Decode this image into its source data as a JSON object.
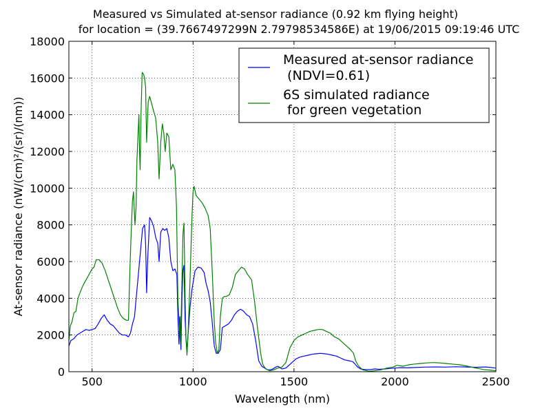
{
  "chart_data": {
    "type": "line",
    "title_line1": "Measured vs Simulated at-sensor radiance (0.92 km flying height)",
    "title_line2": "for location = (39.7667497299N 2.79798534586E) at 19/06/2015 09:19:46 UTC",
    "xlabel": "Wavelength (nm)",
    "ylabel": "At-sensor radiance (nW/(cm)²/(sr)/(nm))",
    "xlim": [
      385,
      2500
    ],
    "ylim": [
      0,
      18000
    ],
    "xticks": [
      500,
      1000,
      1500,
      2000,
      2500
    ],
    "yticks": [
      0,
      2000,
      4000,
      6000,
      8000,
      10000,
      12000,
      14000,
      16000,
      18000
    ],
    "grid": true,
    "legend_position": "top-right",
    "series": [
      {
        "name": "Measured at-sensor radiance",
        "name_line2": " (NDVI=0.61)",
        "color": "#0000ff",
        "points": [
          [
            385,
            1400
          ],
          [
            395,
            1700
          ],
          [
            410,
            1800
          ],
          [
            425,
            2000
          ],
          [
            440,
            2100
          ],
          [
            455,
            2200
          ],
          [
            470,
            2300
          ],
          [
            485,
            2250
          ],
          [
            500,
            2300
          ],
          [
            515,
            2350
          ],
          [
            530,
            2600
          ],
          [
            545,
            2900
          ],
          [
            560,
            3100
          ],
          [
            575,
            2800
          ],
          [
            590,
            2600
          ],
          [
            605,
            2500
          ],
          [
            620,
            2300
          ],
          [
            635,
            2100
          ],
          [
            650,
            2000
          ],
          [
            665,
            2000
          ],
          [
            680,
            1900
          ],
          [
            690,
            2100
          ],
          [
            700,
            2600
          ],
          [
            710,
            3000
          ],
          [
            720,
            4200
          ],
          [
            735,
            6000
          ],
          [
            750,
            7800
          ],
          [
            760,
            8000
          ],
          [
            765,
            7000
          ],
          [
            770,
            4300
          ],
          [
            775,
            6000
          ],
          [
            785,
            8400
          ],
          [
            795,
            8200
          ],
          [
            805,
            7900
          ],
          [
            815,
            7300
          ],
          [
            825,
            7000
          ],
          [
            832,
            6000
          ],
          [
            840,
            7600
          ],
          [
            850,
            7800
          ],
          [
            860,
            7700
          ],
          [
            870,
            7800
          ],
          [
            880,
            7300
          ],
          [
            890,
            6000
          ],
          [
            900,
            5500
          ],
          [
            910,
            5600
          ],
          [
            920,
            5300
          ],
          [
            925,
            3000
          ],
          [
            930,
            1500
          ],
          [
            935,
            3000
          ],
          [
            940,
            1200
          ],
          [
            945,
            4000
          ],
          [
            950,
            5500
          ],
          [
            955,
            5800
          ],
          [
            960,
            3000
          ],
          [
            965,
            1800
          ],
          [
            970,
            1200
          ],
          [
            975,
            2000
          ],
          [
            985,
            3500
          ],
          [
            995,
            4500
          ],
          [
            1010,
            5500
          ],
          [
            1025,
            5700
          ],
          [
            1040,
            5650
          ],
          [
            1055,
            5400
          ],
          [
            1065,
            4800
          ],
          [
            1075,
            4400
          ],
          [
            1085,
            3800
          ],
          [
            1095,
            2700
          ],
          [
            1105,
            1400
          ],
          [
            1115,
            1000
          ],
          [
            1125,
            1000
          ],
          [
            1135,
            1200
          ],
          [
            1145,
            2400
          ],
          [
            1160,
            2500
          ],
          [
            1175,
            2600
          ],
          [
            1190,
            2800
          ],
          [
            1205,
            3100
          ],
          [
            1220,
            3300
          ],
          [
            1235,
            3400
          ],
          [
            1250,
            3300
          ],
          [
            1265,
            3100
          ],
          [
            1280,
            3000
          ],
          [
            1295,
            2600
          ],
          [
            1310,
            1700
          ],
          [
            1325,
            600
          ],
          [
            1340,
            300
          ],
          [
            1355,
            200
          ],
          [
            1370,
            100
          ],
          [
            1390,
            120
          ],
          [
            1410,
            250
          ],
          [
            1420,
            300
          ],
          [
            1440,
            150
          ],
          [
            1460,
            200
          ],
          [
            1470,
            300
          ],
          [
            1490,
            500
          ],
          [
            1510,
            700
          ],
          [
            1530,
            800
          ],
          [
            1550,
            850
          ],
          [
            1570,
            900
          ],
          [
            1590,
            950
          ],
          [
            1610,
            980
          ],
          [
            1630,
            1000
          ],
          [
            1650,
            980
          ],
          [
            1670,
            950
          ],
          [
            1690,
            900
          ],
          [
            1710,
            850
          ],
          [
            1730,
            750
          ],
          [
            1750,
            650
          ],
          [
            1770,
            600
          ],
          [
            1790,
            550
          ],
          [
            1800,
            450
          ],
          [
            1815,
            250
          ],
          [
            1830,
            150
          ],
          [
            1850,
            120
          ],
          [
            1880,
            120
          ],
          [
            1900,
            150
          ],
          [
            1920,
            130
          ],
          [
            1950,
            150
          ],
          [
            1980,
            180
          ],
          [
            2000,
            200
          ],
          [
            2030,
            220
          ],
          [
            2060,
            210
          ],
          [
            2100,
            230
          ],
          [
            2150,
            250
          ],
          [
            2200,
            260
          ],
          [
            2250,
            250
          ],
          [
            2300,
            270
          ],
          [
            2350,
            260
          ],
          [
            2400,
            240
          ],
          [
            2450,
            260
          ],
          [
            2500,
            200
          ]
        ]
      },
      {
        "name": "6S simulated radiance",
        "name_line2": " for green vegetation",
        "color": "#008000",
        "points": [
          [
            385,
            1700
          ],
          [
            392,
            2500
          ],
          [
            400,
            2700
          ],
          [
            410,
            3200
          ],
          [
            420,
            3300
          ],
          [
            430,
            4000
          ],
          [
            440,
            4300
          ],
          [
            455,
            4700
          ],
          [
            470,
            5000
          ],
          [
            485,
            5300
          ],
          [
            500,
            5600
          ],
          [
            510,
            5700
          ],
          [
            520,
            6100
          ],
          [
            535,
            6100
          ],
          [
            550,
            5900
          ],
          [
            565,
            5500
          ],
          [
            580,
            5000
          ],
          [
            595,
            4500
          ],
          [
            610,
            4000
          ],
          [
            625,
            3500
          ],
          [
            640,
            3100
          ],
          [
            655,
            2900
          ],
          [
            670,
            2800
          ],
          [
            680,
            2800
          ],
          [
            688,
            5800
          ],
          [
            695,
            8000
          ],
          [
            700,
            9300
          ],
          [
            705,
            9800
          ],
          [
            712,
            8000
          ],
          [
            718,
            9000
          ],
          [
            722,
            11500
          ],
          [
            728,
            13000
          ],
          [
            732,
            14000
          ],
          [
            735,
            12000
          ],
          [
            738,
            11000
          ],
          [
            742,
            14000
          ],
          [
            748,
            16300
          ],
          [
            755,
            16200
          ],
          [
            760,
            16000
          ],
          [
            765,
            15500
          ],
          [
            770,
            12500
          ],
          [
            778,
            14700
          ],
          [
            785,
            15000
          ],
          [
            795,
            14600
          ],
          [
            805,
            14200
          ],
          [
            815,
            13800
          ],
          [
            825,
            12500
          ],
          [
            832,
            10500
          ],
          [
            840,
            12500
          ],
          [
            848,
            13500
          ],
          [
            855,
            13000
          ],
          [
            862,
            12000
          ],
          [
            870,
            13000
          ],
          [
            880,
            12800
          ],
          [
            890,
            11000
          ],
          [
            900,
            11300
          ],
          [
            910,
            11000
          ],
          [
            918,
            9000
          ],
          [
            925,
            4000
          ],
          [
            932,
            2500
          ],
          [
            938,
            1500
          ],
          [
            944,
            4500
          ],
          [
            950,
            7500
          ],
          [
            955,
            8100
          ],
          [
            960,
            4500
          ],
          [
            965,
            1800
          ],
          [
            970,
            900
          ],
          [
            975,
            2000
          ],
          [
            985,
            5000
          ],
          [
            995,
            8500
          ],
          [
            1000,
            9800
          ],
          [
            1005,
            10100
          ],
          [
            1015,
            9600
          ],
          [
            1030,
            9400
          ],
          [
            1045,
            9200
          ],
          [
            1060,
            8900
          ],
          [
            1075,
            8500
          ],
          [
            1085,
            7800
          ],
          [
            1095,
            5500
          ],
          [
            1105,
            2700
          ],
          [
            1112,
            1600
          ],
          [
            1120,
            1000
          ],
          [
            1128,
            1200
          ],
          [
            1135,
            3000
          ],
          [
            1145,
            4000
          ],
          [
            1155,
            4100
          ],
          [
            1165,
            4100
          ],
          [
            1180,
            4200
          ],
          [
            1195,
            4600
          ],
          [
            1210,
            5300
          ],
          [
            1225,
            5500
          ],
          [
            1240,
            5700
          ],
          [
            1255,
            5600
          ],
          [
            1270,
            5300
          ],
          [
            1290,
            5000
          ],
          [
            1305,
            3800
          ],
          [
            1320,
            2300
          ],
          [
            1335,
            1000
          ],
          [
            1345,
            400
          ],
          [
            1360,
            150
          ],
          [
            1380,
            50
          ],
          [
            1400,
            100
          ],
          [
            1420,
            200
          ],
          [
            1440,
            250
          ],
          [
            1460,
            500
          ],
          [
            1480,
            1300
          ],
          [
            1500,
            1700
          ],
          [
            1520,
            1900
          ],
          [
            1540,
            2000
          ],
          [
            1560,
            2100
          ],
          [
            1580,
            2200
          ],
          [
            1600,
            2250
          ],
          [
            1620,
            2300
          ],
          [
            1640,
            2300
          ],
          [
            1660,
            2200
          ],
          [
            1680,
            2100
          ],
          [
            1700,
            1900
          ],
          [
            1720,
            1800
          ],
          [
            1740,
            1600
          ],
          [
            1760,
            1400
          ],
          [
            1780,
            1200
          ],
          [
            1795,
            1000
          ],
          [
            1805,
            600
          ],
          [
            1820,
            300
          ],
          [
            1840,
            100
          ],
          [
            1870,
            30
          ],
          [
            1900,
            50
          ],
          [
            1930,
            100
          ],
          [
            1960,
            200
          ],
          [
            1990,
            250
          ],
          [
            2010,
            350
          ],
          [
            2040,
            300
          ],
          [
            2070,
            380
          ],
          [
            2100,
            420
          ],
          [
            2130,
            450
          ],
          [
            2160,
            480
          ],
          [
            2190,
            500
          ],
          [
            2220,
            480
          ],
          [
            2250,
            450
          ],
          [
            2280,
            420
          ],
          [
            2320,
            380
          ],
          [
            2360,
            300
          ],
          [
            2400,
            200
          ],
          [
            2440,
            120
          ],
          [
            2480,
            80
          ],
          [
            2500,
            50
          ]
        ]
      }
    ]
  }
}
